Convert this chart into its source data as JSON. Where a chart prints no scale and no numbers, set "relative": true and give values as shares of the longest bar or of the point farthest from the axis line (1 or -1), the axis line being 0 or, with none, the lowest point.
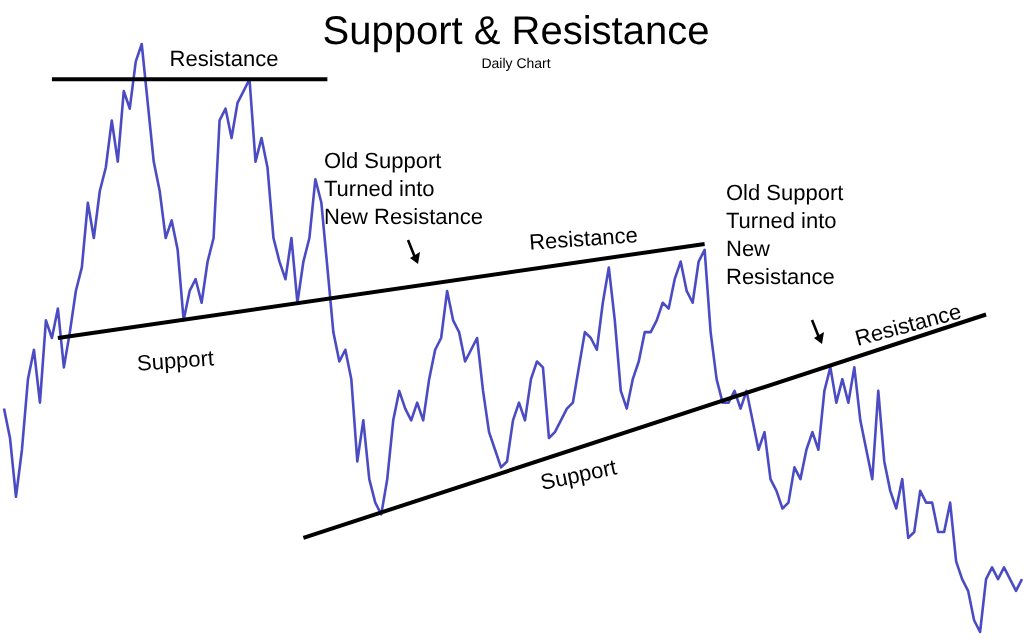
{
  "chart_data": {
    "type": "line",
    "relative": true,
    "title": "Support & Resistance",
    "subtitle": "Daily Chart",
    "categories": [
      null,
      null,
      null,
      null,
      null,
      null,
      null,
      null,
      null,
      null,
      null,
      null,
      null,
      null,
      null,
      null,
      null,
      null,
      null,
      null,
      null,
      null,
      null,
      null,
      null,
      null,
      null,
      null,
      null,
      null,
      null,
      null,
      null,
      null,
      null,
      null,
      null,
      null,
      null,
      null,
      null,
      null,
      null,
      null,
      null,
      null,
      null,
      null,
      null,
      null,
      null,
      null,
      null,
      null,
      null,
      null,
      null,
      null,
      null,
      null,
      null,
      null,
      null,
      null,
      null,
      null,
      null,
      null,
      null,
      null,
      null,
      null,
      null,
      null,
      null,
      null,
      null,
      null,
      null,
      null,
      null,
      null,
      null,
      null,
      null,
      null,
      null,
      null,
      null,
      null,
      null,
      null,
      null,
      null,
      null,
      null,
      null,
      null,
      null,
      null,
      null,
      null,
      null,
      null,
      null,
      null,
      null,
      null,
      null,
      null,
      null,
      null,
      null,
      null,
      null,
      null,
      null,
      null,
      null,
      null,
      null,
      null,
      null,
      null,
      null,
      null,
      null,
      null,
      null,
      null,
      null,
      null,
      null,
      null,
      null,
      null,
      null,
      null,
      null,
      null,
      null,
      null,
      null,
      null,
      null,
      null,
      null,
      null,
      null,
      null,
      null,
      null,
      null,
      null,
      null,
      null,
      null,
      null,
      null,
      null,
      null,
      null,
      null,
      null,
      null,
      null,
      null,
      null,
      null,
      null,
      null
    ],
    "series": [
      {
        "color": "#4b4bc4",
        "values": [
          0.38,
          0.33,
          0.23,
          0.31,
          0.43,
          0.48,
          0.39,
          0.53,
          0.5,
          0.55,
          0.45,
          0.51,
          0.58,
          0.62,
          0.73,
          0.67,
          0.75,
          0.79,
          0.87,
          0.8,
          0.92,
          0.89,
          0.97,
          1,
          0.9,
          0.8,
          0.75,
          0.67,
          0.7,
          0.65,
          0.53,
          0.58,
          0.6,
          0.56,
          0.63,
          0.67,
          0.87,
          0.89,
          0.84,
          0.9,
          0.92,
          0.94,
          0.8,
          0.84,
          0.79,
          0.67,
          0.63,
          0.6,
          0.67,
          0.56,
          0.63,
          0.67,
          0.77,
          0.73,
          0.62,
          0.51,
          0.46,
          0.48,
          0.43,
          0.29,
          0.36,
          0.26,
          0.22,
          0.2,
          0.26,
          0.36,
          0.41,
          0.38,
          0.36,
          0.39,
          0.36,
          0.43,
          0.48,
          0.5,
          0.58,
          0.53,
          0.51,
          0.46,
          0.48,
          0.5,
          0.41,
          0.34,
          0.31,
          0.28,
          0.29,
          0.36,
          0.39,
          0.36,
          0.43,
          0.46,
          0.45,
          0.33,
          0.34,
          0.36,
          0.38,
          0.39,
          0.45,
          0.51,
          0.5,
          0.48,
          0.56,
          0.62,
          0.53,
          0.41,
          0.38,
          0.43,
          0.46,
          0.51,
          0.51,
          0.53,
          0.56,
          0.55,
          0.6,
          0.63,
          0.58,
          0.56,
          0.63,
          0.65,
          0.51,
          0.43,
          0.39,
          0.39,
          0.41,
          0.38,
          0.41,
          0.36,
          0.31,
          0.34,
          0.26,
          0.24,
          0.21,
          0.22,
          0.28,
          0.26,
          0.31,
          0.34,
          0.31,
          0.41,
          0.45,
          0.39,
          0.43,
          0.39,
          0.45,
          0.36,
          0.31,
          0.26,
          0.41,
          0.29,
          0.24,
          0.21,
          0.26,
          0.16,
          0.17,
          0.24,
          0.22,
          0.22,
          0.17,
          0.17,
          0.22,
          0.12,
          0.09,
          0.07,
          0.02,
          0,
          0.09,
          0.11,
          0.09,
          0.11,
          0.09,
          0.07,
          0.09
        ]
      },
      {
        "type": "line",
        "color": "#000000",
        "values": [
          null,
          null,
          null,
          null,
          null,
          null,
          null,
          null,
          0.94,
          null,
          null,
          null,
          null,
          null,
          null,
          null,
          null,
          null,
          null,
          null,
          null,
          null,
          null,
          null,
          null,
          null,
          null,
          null,
          null,
          null,
          null,
          null,
          null,
          null,
          null,
          null,
          null,
          null,
          null,
          null,
          null,
          null,
          null,
          null,
          null,
          null,
          null,
          null,
          null,
          null,
          null,
          null,
          null,
          null,
          0.94,
          null,
          null,
          null,
          null,
          null,
          null,
          null,
          null,
          null,
          null,
          null,
          null,
          null,
          null,
          null,
          null,
          null,
          null,
          null,
          null,
          null,
          null,
          null,
          null,
          null,
          null,
          null,
          null,
          null,
          null,
          null,
          null,
          null,
          null,
          null,
          null,
          null,
          null,
          null,
          null,
          null,
          null,
          null,
          null,
          null,
          null,
          null,
          null,
          null,
          null,
          null,
          null,
          null,
          null,
          null,
          null,
          null,
          null,
          null,
          null,
          null,
          null,
          null,
          null,
          null,
          null,
          null,
          null,
          null,
          null,
          null,
          null,
          null,
          null,
          null,
          null,
          null,
          null,
          null,
          null,
          null,
          null,
          null,
          null,
          null,
          null,
          null,
          null,
          null,
          null,
          null,
          null,
          null,
          null,
          null,
          null,
          null,
          null,
          null,
          null,
          null,
          null,
          null,
          null,
          null,
          null,
          null,
          null,
          null,
          null,
          null,
          null,
          null,
          null,
          null,
          null
        ]
      },
      {
        "type": "line",
        "color": "#000000",
        "values": [
          null,
          null,
          null,
          null,
          null,
          null,
          null,
          null,
          null,
          0.5,
          null,
          null,
          null,
          null,
          null,
          null,
          null,
          null,
          null,
          null,
          null,
          null,
          null,
          null,
          null,
          null,
          null,
          null,
          null,
          null,
          null,
          null,
          null,
          null,
          null,
          null,
          null,
          null,
          null,
          null,
          null,
          null,
          null,
          null,
          null,
          null,
          null,
          null,
          null,
          null,
          null,
          null,
          null,
          null,
          null,
          null,
          null,
          null,
          null,
          null,
          null,
          null,
          null,
          null,
          null,
          null,
          null,
          null,
          null,
          null,
          null,
          null,
          null,
          null,
          null,
          null,
          null,
          null,
          null,
          null,
          null,
          null,
          null,
          null,
          null,
          null,
          null,
          null,
          null,
          null,
          null,
          null,
          null,
          null,
          null,
          null,
          null,
          null,
          null,
          null,
          null,
          null,
          null,
          null,
          null,
          null,
          null,
          null,
          null,
          null,
          null,
          null,
          null,
          null,
          null,
          null,
          null,
          0.66,
          null,
          null,
          null,
          null,
          null,
          null,
          null,
          null,
          null,
          null,
          null,
          null,
          null,
          null,
          null,
          null,
          null,
          null,
          null,
          null,
          null,
          null,
          null,
          null,
          null,
          null,
          null,
          null,
          null,
          null,
          null,
          null,
          null,
          null,
          null,
          null,
          null,
          null,
          null,
          null,
          null,
          null,
          null,
          null,
          null,
          null,
          null,
          null,
          null,
          null,
          null,
          null,
          null
        ]
      },
      {
        "type": "line",
        "color": "#000000",
        "values": [
          null,
          null,
          null,
          null,
          null,
          null,
          null,
          null,
          null,
          null,
          null,
          null,
          null,
          null,
          null,
          null,
          null,
          null,
          null,
          null,
          null,
          null,
          null,
          null,
          null,
          null,
          null,
          null,
          null,
          null,
          null,
          null,
          null,
          null,
          null,
          null,
          null,
          null,
          null,
          null,
          null,
          null,
          null,
          null,
          null,
          null,
          null,
          null,
          null,
          null,
          0.16,
          null,
          null,
          null,
          null,
          null,
          null,
          null,
          null,
          null,
          null,
          null,
          null,
          null,
          null,
          null,
          null,
          null,
          null,
          null,
          null,
          null,
          null,
          null,
          null,
          null,
          null,
          null,
          null,
          null,
          null,
          null,
          null,
          null,
          null,
          null,
          null,
          null,
          null,
          null,
          null,
          null,
          null,
          null,
          null,
          null,
          null,
          null,
          null,
          null,
          null,
          null,
          null,
          null,
          null,
          null,
          null,
          null,
          null,
          null,
          null,
          null,
          null,
          null,
          null,
          null,
          null,
          null,
          null,
          null,
          null,
          null,
          null,
          null,
          null,
          null,
          null,
          null,
          null,
          null,
          null,
          null,
          null,
          null,
          null,
          null,
          null,
          null,
          null,
          null,
          null,
          null,
          null,
          null,
          null,
          null,
          null,
          null,
          null,
          null,
          null,
          null,
          null,
          null,
          null,
          null,
          null,
          null,
          null,
          null,
          null,
          null,
          null,
          null,
          0.54,
          null,
          null,
          null,
          null,
          null,
          null
        ]
      }
    ],
    "annotations": [
      "Resistance",
      "Support",
      "Old Support\nTurned into\nNew Resistance",
      "Resistance",
      "Support",
      "Old Support\nTurned into\nNew\nResistance",
      "Resistance"
    ],
    "marker": "none",
    "line_style": "solid"
  }
}
